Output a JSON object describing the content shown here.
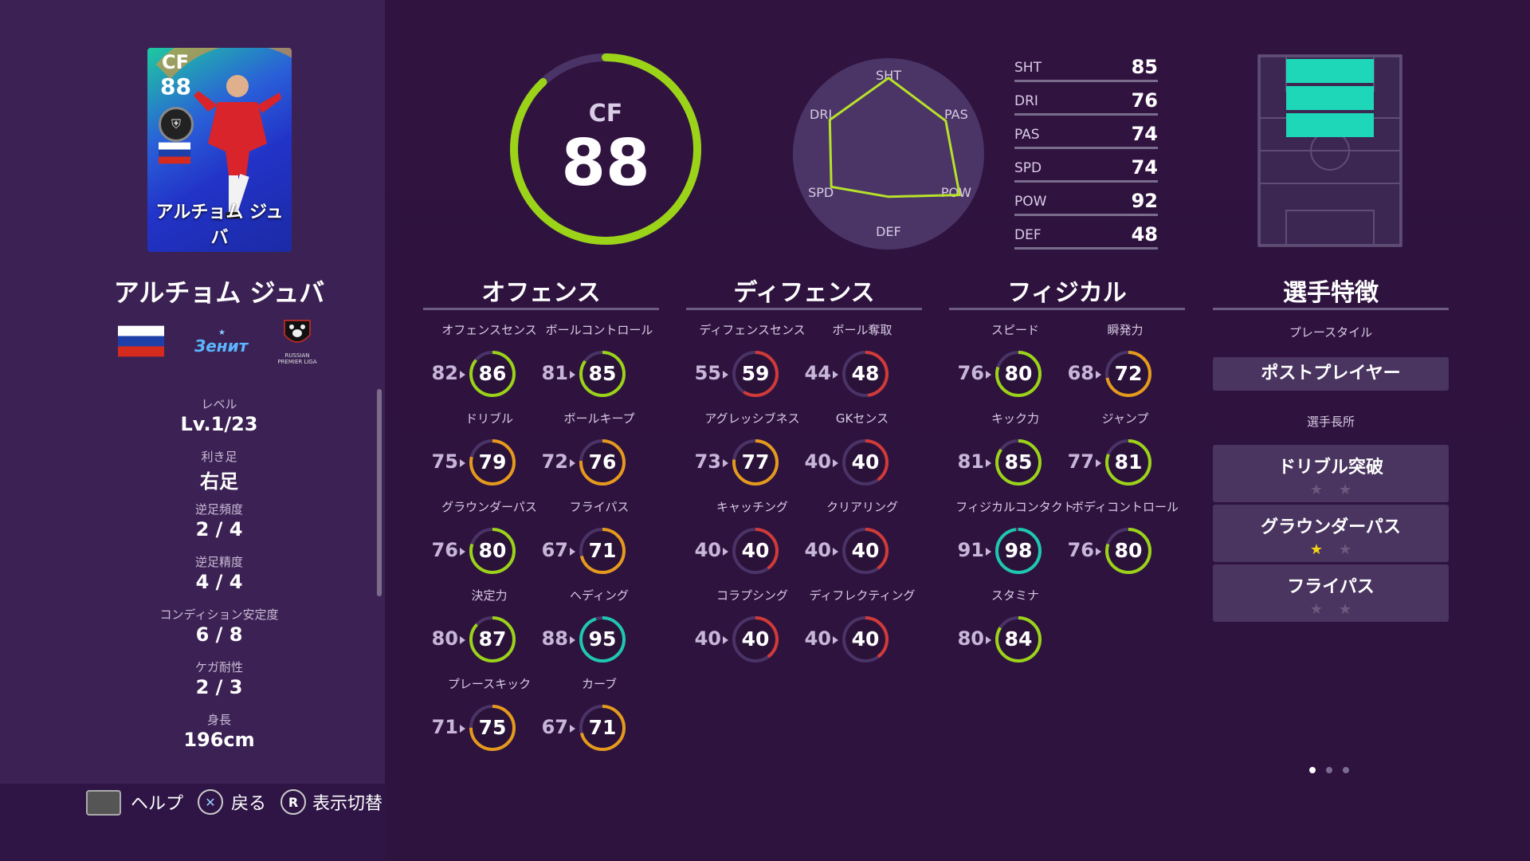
{
  "card": {
    "position": "CF",
    "overall": "88",
    "name": "アルチョム ジュバ"
  },
  "player": {
    "name": "アルチョム ジュバ"
  },
  "club_logo_text": "Зенит",
  "league_logo_text": "RUSSIAN PREMIER LIGA",
  "info": [
    {
      "label": "レベル",
      "value": "Lv.1/23"
    },
    {
      "label": "利き足",
      "value": "右足"
    },
    {
      "label": "逆足頻度",
      "value": "2 / 4"
    },
    {
      "label": "逆足精度",
      "value": "4 / 4"
    },
    {
      "label": "コンディション安定度",
      "value": "6 / 8"
    },
    {
      "label": "ケガ耐性",
      "value": "2 / 3"
    },
    {
      "label": "身長",
      "value": "196cm"
    }
  ],
  "hints": [
    {
      "icon": "touchpad-icon",
      "label": "ヘルプ"
    },
    {
      "icon": "cross-button-icon",
      "label": "戻る"
    },
    {
      "icon": "r-button-icon",
      "label": "表示切替",
      "key": "R"
    }
  ],
  "overall": {
    "position": "CF",
    "value": "88",
    "fraction": 0.88
  },
  "radar": {
    "labels": [
      "SHT",
      "PAS",
      "POW",
      "DEF",
      "SPD",
      "DRI"
    ],
    "values": [
      85,
      74,
      92,
      48,
      74,
      76
    ]
  },
  "stat_rows": [
    {
      "label": "SHT",
      "value": "85"
    },
    {
      "label": "DRI",
      "value": "76"
    },
    {
      "label": "PAS",
      "value": "74"
    },
    {
      "label": "SPD",
      "value": "74"
    },
    {
      "label": "POW",
      "value": "92"
    },
    {
      "label": "DEF",
      "value": "48"
    }
  ],
  "sections": [
    {
      "title": "オフェンス",
      "stats": [
        {
          "label": "オフェンスセンス",
          "base": "82",
          "value": "86"
        },
        {
          "label": "ボールコントロール",
          "base": "81",
          "value": "85"
        },
        {
          "label": "ドリブル",
          "base": "75",
          "value": "79"
        },
        {
          "label": "ボールキープ",
          "base": "72",
          "value": "76"
        },
        {
          "label": "グラウンダーパス",
          "base": "76",
          "value": "80"
        },
        {
          "label": "フライパス",
          "base": "67",
          "value": "71"
        },
        {
          "label": "決定力",
          "base": "80",
          "value": "87"
        },
        {
          "label": "ヘディング",
          "base": "88",
          "value": "95"
        },
        {
          "label": "プレースキック",
          "base": "71",
          "value": "75"
        },
        {
          "label": "カーブ",
          "base": "67",
          "value": "71"
        }
      ]
    },
    {
      "title": "ディフェンス",
      "stats": [
        {
          "label": "ディフェンスセンス",
          "base": "55",
          "value": "59"
        },
        {
          "label": "ボール奪取",
          "base": "44",
          "value": "48"
        },
        {
          "label": "アグレッシブネス",
          "base": "73",
          "value": "77"
        },
        {
          "label": "GKセンス",
          "base": "40",
          "value": "40"
        },
        {
          "label": "キャッチング",
          "base": "40",
          "value": "40"
        },
        {
          "label": "クリアリング",
          "base": "40",
          "value": "40"
        },
        {
          "label": "コラプシング",
          "base": "40",
          "value": "40"
        },
        {
          "label": "ディフレクティング",
          "base": "40",
          "value": "40"
        }
      ]
    },
    {
      "title": "フィジカル",
      "stats": [
        {
          "label": "スピード",
          "base": "76",
          "value": "80"
        },
        {
          "label": "瞬発力",
          "base": "68",
          "value": "72"
        },
        {
          "label": "キック力",
          "base": "81",
          "value": "85"
        },
        {
          "label": "ジャンプ",
          "base": "77",
          "value": "81"
        },
        {
          "label": "フィジカルコンタクト",
          "base": "91",
          "value": "98"
        },
        {
          "label": "ボディコントロール",
          "base": "76",
          "value": "80"
        },
        {
          "label": "スタミナ",
          "base": "80",
          "value": "84"
        }
      ]
    }
  ],
  "traits": {
    "title": "選手特徴",
    "playstyle_label": "プレースタイル",
    "playstyle": "ポストプレイヤー",
    "skills_label": "選手長所",
    "skills": [
      {
        "name": "ドリブル突破",
        "stars": 0
      },
      {
        "name": "グラウンダーパス",
        "stars": 1
      },
      {
        "name": "フライパス",
        "stars": 0
      }
    ]
  },
  "colors": {
    "green": "#9bd318",
    "teal": "#1ec8b0",
    "orange": "#e69a1c",
    "red": "#d03a38"
  }
}
